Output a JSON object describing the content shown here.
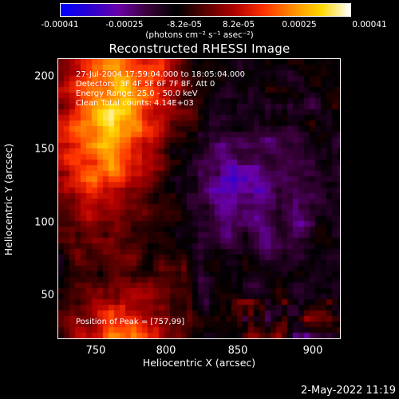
{
  "colorbar": {
    "ticks": [
      "-0.00041",
      "-0.00025",
      "-8.2e-05",
      "8.2e-05",
      "0.00025",
      "0.00041"
    ],
    "unit": "(photons cm⁻² s⁻¹ asec⁻²)",
    "stops": [
      "#0000ff",
      "#2b00d0",
      "#6a00a8",
      "#3a003a",
      "#000000",
      "#5a0000",
      "#b00000",
      "#ff3000",
      "#ff8c00",
      "#ffd800",
      "#ffffff"
    ]
  },
  "plot": {
    "title": "Reconstructed RHESSI Image",
    "annotations": [
      "27-Jul-2004 17:59:04.000 to 18:05:04.000",
      "Detectors: 3F 4F 5F 6F 7F 8F, Att 0",
      "Energy Range: 25.0 - 50.0 keV",
      "Clean     Total counts: 4.14E+03"
    ],
    "peak_label": "Position of Peak = [757,99]"
  },
  "chart_data": {
    "type": "heatmap",
    "title": "Reconstructed RHESSI Image",
    "xlabel": "Heliocentric X (arcsec)",
    "ylabel": "Heliocentric Y (arcsec)",
    "xlim": [
      725,
      920
    ],
    "ylim": [
      20,
      215
    ],
    "x_ticks": [
      "750",
      "800",
      "850",
      "900"
    ],
    "y_ticks": [
      "200",
      "150",
      "100",
      "50"
    ],
    "color_range": [
      -0.00041,
      0.00041
    ],
    "peak_position": [
      757,
      99
    ]
  },
  "footer": {
    "timestamp": "2-May-2022 11:19"
  }
}
